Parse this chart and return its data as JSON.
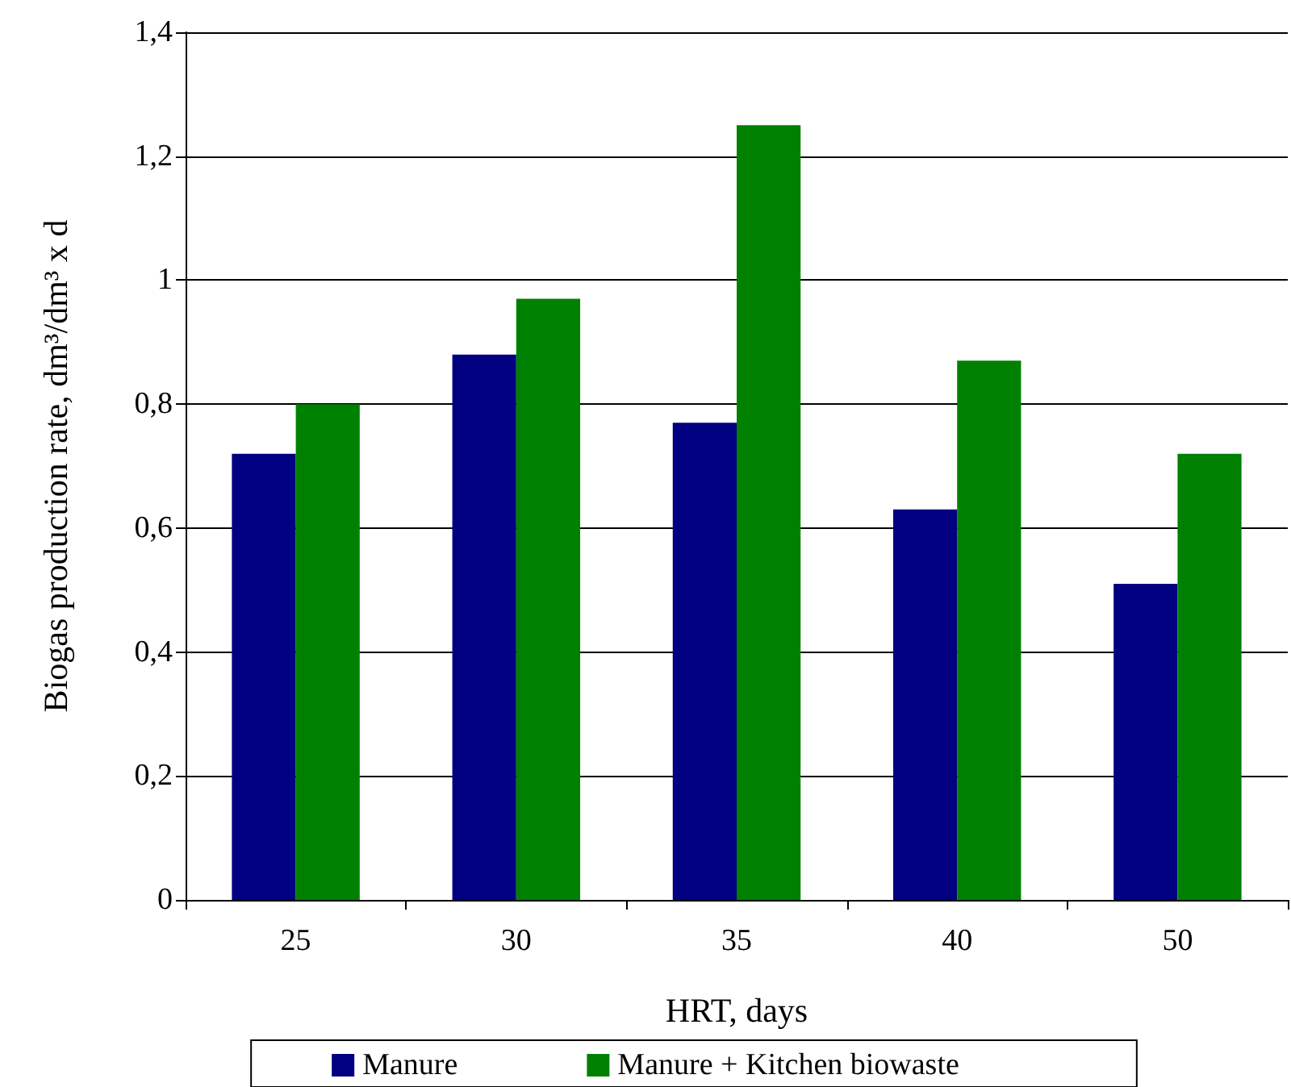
{
  "chart_data": {
    "type": "bar",
    "xlabel": "HRT, days",
    "ylabel": "Biogas production rate, dm³/dm³ x d",
    "categories": [
      "25",
      "30",
      "35",
      "40",
      "50"
    ],
    "series": [
      {
        "name": "Manure",
        "color": "#000080",
        "values": [
          0.72,
          0.88,
          0.77,
          0.63,
          0.51
        ]
      },
      {
        "name": "Manure + Kitchen biowaste",
        "color": "#008000",
        "values": [
          0.8,
          0.97,
          1.25,
          0.87,
          0.72
        ]
      }
    ],
    "ylim": [
      0,
      1.4
    ],
    "yticks": [
      0,
      {
        "value": 0.2,
        "label": "0,2"
      },
      {
        "value": 0.4,
        "label": "0,4"
      },
      {
        "value": 0.6,
        "label": "0,6"
      },
      {
        "value": 0.8,
        "label": "0,8"
      },
      1,
      {
        "value": 1.2,
        "label": "1,2"
      },
      {
        "value": 1.4,
        "label": "1,4"
      }
    ],
    "grid": "y",
    "legend": "bottom"
  }
}
